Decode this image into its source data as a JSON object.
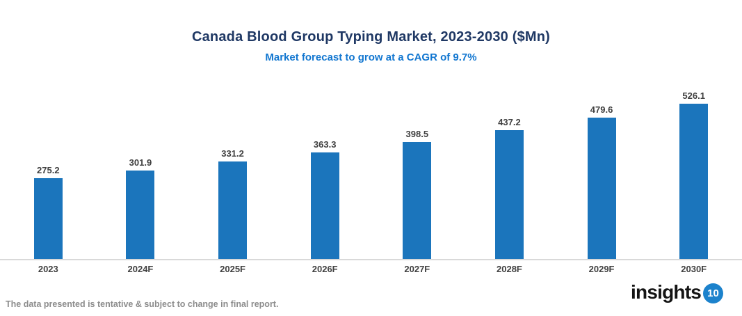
{
  "header": {
    "title": "Canada Blood Group Typing Market, 2023-2030 ($Mn)",
    "subtitle": "Market forecast to grow at a CAGR of 9.7%"
  },
  "chart_data": {
    "type": "bar",
    "title": "Canada Blood Group Typing Market, 2023-2030 ($Mn)",
    "subtitle": "Market forecast to grow at a CAGR of 9.7%",
    "categories": [
      "2023",
      "2024F",
      "2025F",
      "2026F",
      "2027F",
      "2028F",
      "2029F",
      "2030F"
    ],
    "values": [
      275.2,
      301.9,
      331.2,
      363.3,
      398.5,
      437.2,
      479.6,
      526.1
    ],
    "xlabel": "",
    "ylabel": "",
    "ylim": [
      0,
      560
    ],
    "grid": false,
    "legend": false,
    "data_labels": true,
    "bar_color": "#1B75BC",
    "unit": "$Mn",
    "cagr": "9.7%"
  },
  "footer": {
    "disclaimer": "The data presented is tentative & subject to change in final report.",
    "logo_text": "insights",
    "logo_badge": "10"
  },
  "colors": {
    "title": "#1F3864",
    "subtitle": "#1176D0",
    "bar": "#1B75BC",
    "value_label": "#404040",
    "axis_line": "#D9D9D9",
    "footer_text": "#8C8C8C",
    "logo_badge_bg": "#1C82CC"
  }
}
